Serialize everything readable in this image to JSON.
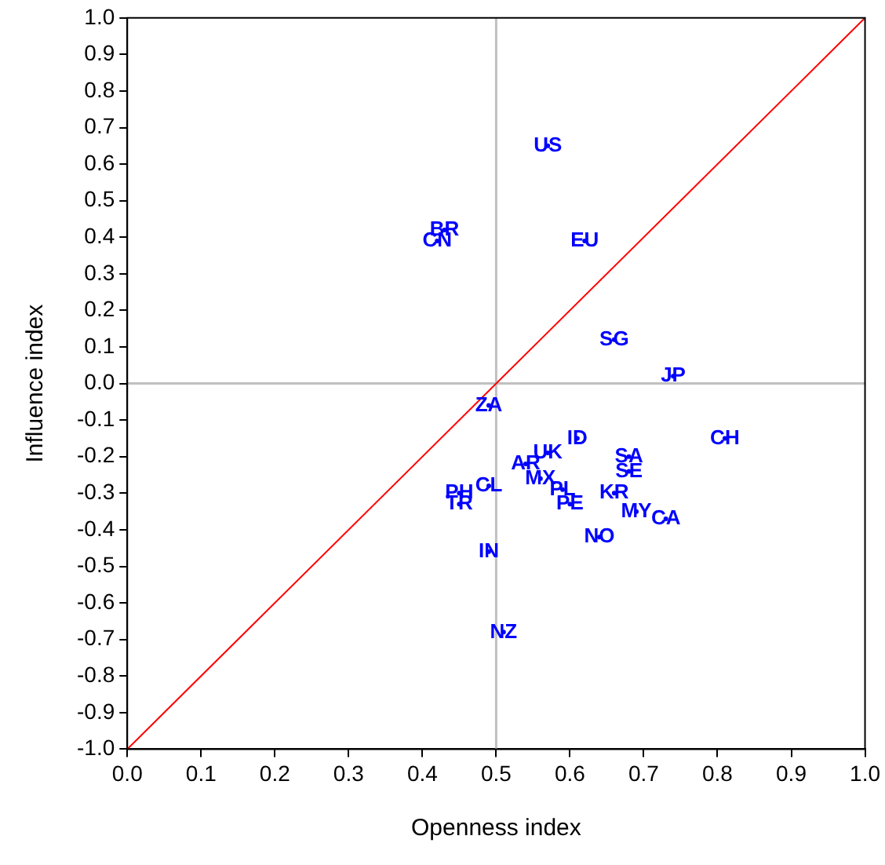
{
  "chart_data": {
    "type": "scatter",
    "xlabel": "Openness index",
    "ylabel": "Influence index",
    "xlim": [
      0,
      1
    ],
    "ylim": [
      -1,
      1
    ],
    "xticks": [
      {
        "value": 0,
        "label": "0.0"
      },
      0.1,
      0.2,
      0.3,
      0.4,
      0.5,
      0.6,
      0.7,
      0.8,
      0.9,
      {
        "value": 1,
        "label": "1.0"
      }
    ],
    "yticks": [
      {
        "value": -1,
        "label": "-1.0"
      },
      -0.9,
      -0.8,
      -0.7,
      -0.6,
      -0.5,
      -0.4,
      -0.3,
      -0.2,
      -0.1,
      {
        "value": 0,
        "label": "0.0"
      },
      0.1,
      0.2,
      0.3,
      0.4,
      0.5,
      0.6,
      0.7,
      0.8,
      0.9,
      {
        "value": 1,
        "label": "1.0"
      }
    ],
    "grid": false,
    "legend": false,
    "ref_lines": [
      {
        "axis": "x",
        "value": 0.5,
        "color": "#c0c0c0"
      },
      {
        "axis": "y",
        "value": 0,
        "color": "#c0c0c0"
      }
    ],
    "series": [
      {
        "color": "#0000ff",
        "x": [
          0.57,
          0.43,
          0.42,
          0.62,
          0.66,
          0.74,
          0.49,
          0.61,
          0.81,
          0.57,
          0.68,
          0.54,
          0.68,
          0.56,
          0.49,
          0.45,
          0.59,
          0.66,
          0.6,
          0.45,
          0.69,
          0.73,
          0.64,
          0.49,
          0.51
        ],
        "values": [
          0.65,
          0.42,
          0.39,
          0.39,
          0.12,
          0.02,
          -0.06,
          -0.15,
          -0.15,
          -0.19,
          -0.2,
          -0.22,
          -0.24,
          -0.26,
          -0.28,
          -0.3,
          -0.29,
          -0.3,
          -0.33,
          -0.33,
          -0.35,
          -0.37,
          -0.42,
          -0.46,
          -0.68
        ],
        "value_labels": [
          "US",
          "BR",
          "CN",
          "EU",
          "SG",
          "JP",
          "ZA",
          "ID",
          "CH",
          "UK",
          "SA",
          "AR",
          "SE",
          "MX",
          "CL",
          "PH",
          "PL",
          "KR",
          "PE",
          "TR",
          "MY",
          "CA",
          "NO",
          "IN",
          "NZ"
        ]
      },
      {
        "type": "line",
        "color": "#ff0000",
        "x": [
          0,
          1
        ],
        "values": [
          -1,
          1
        ]
      }
    ]
  }
}
